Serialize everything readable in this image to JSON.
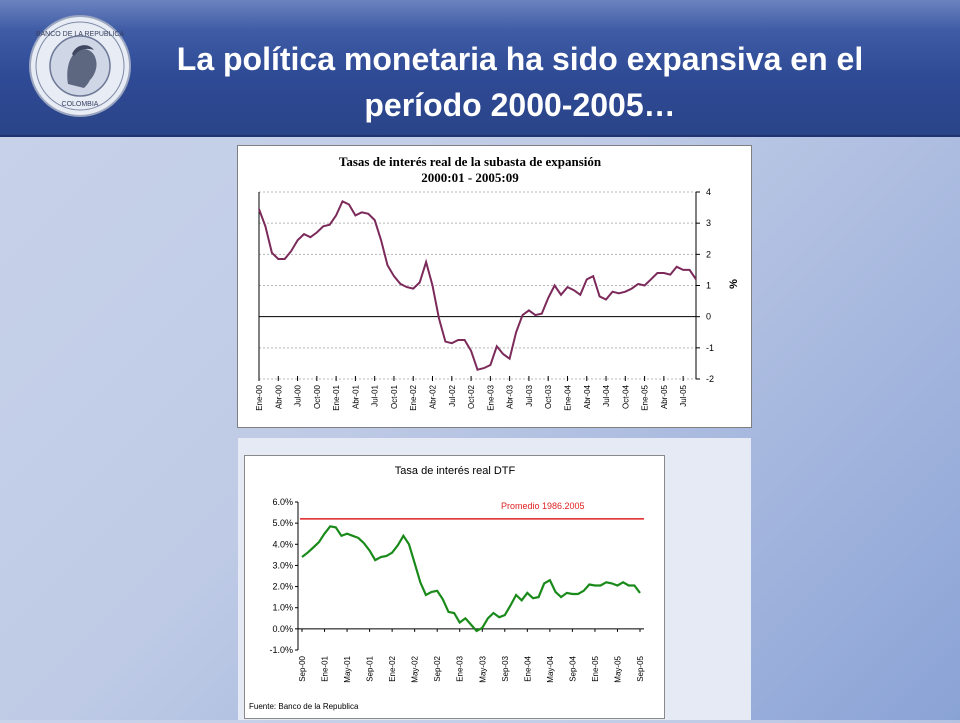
{
  "slide": {
    "title": "La política monetaria ha sido expansiva en el\nperíodo 2000-2005…",
    "logo": {
      "text_top": "BANCO DE LA REPUBLICA",
      "text_bottom": "COLOMBIA"
    }
  },
  "colors": {
    "header": "#2f4b96",
    "series1": "#7b2a5a",
    "series2": "#1a8a1a",
    "avg_line": "#e02020"
  },
  "chart_data": [
    {
      "type": "line",
      "title": "Tasas de interés real de la subasta de expansión",
      "subtitle": "2000:01 - 2005:09",
      "ylabel": "%",
      "ylim": [
        -2,
        4
      ],
      "yticks": [
        4,
        3,
        2,
        1,
        0,
        -1,
        -2
      ],
      "grid": true,
      "x_tick_labels": [
        "Ene-00",
        "Abr-00",
        "Jul-00",
        "Oct-00",
        "Ene-01",
        "Abr-01",
        "Jul-01",
        "Oct-01",
        "Ene-02",
        "Abr-02",
        "Jul-02",
        "Oct-02",
        "Ene-03",
        "Abr-03",
        "Jul-03",
        "Oct-03",
        "Ene-04",
        "Abr-04",
        "Jul-04",
        "Oct-04",
        "Ene-05",
        "Abr-05",
        "Jul-05"
      ],
      "series": [
        {
          "values": [
            3.45,
            2.9,
            2.05,
            1.85,
            1.85,
            2.1,
            2.45,
            2.65,
            2.55,
            2.7,
            2.9,
            2.95,
            3.25,
            3.7,
            3.6,
            3.25,
            3.35,
            3.3,
            3.1,
            2.45,
            1.65,
            1.3,
            1.05,
            0.95,
            0.9,
            1.1,
            1.75,
            1.0,
            -0.05,
            -0.8,
            -0.85,
            -0.75,
            -0.75,
            -1.1,
            -1.7,
            -1.65,
            -1.55,
            -0.95,
            -1.2,
            -1.35,
            -0.5,
            0.05,
            0.2,
            0.05,
            0.1,
            0.6,
            1.0,
            0.7,
            0.95,
            0.85,
            0.7,
            1.2,
            1.3,
            0.65,
            0.55,
            0.8,
            0.75,
            0.8,
            0.9,
            1.05,
            1.0,
            1.2,
            1.4,
            1.4,
            1.35,
            1.6,
            1.5,
            1.5,
            1.2
          ]
        }
      ]
    },
    {
      "type": "line",
      "title": "Tasa de interés real DTF",
      "ylim": [
        -1.0,
        6.0
      ],
      "yticks": [
        "6.0%",
        "5.0%",
        "4.0%",
        "3.0%",
        "2.0%",
        "1.0%",
        "0.0%",
        "-1.0%"
      ],
      "grid": false,
      "x_tick_labels": [
        "Sep-00",
        "Ene-01",
        "May-01",
        "Sep-01",
        "Ene-02",
        "May-02",
        "Sep-02",
        "Ene-03",
        "May-03",
        "Sep-03",
        "Ene-04",
        "May-04",
        "Sep-04",
        "Ene-05",
        "May-05",
        "Sep-05"
      ],
      "reference_line": {
        "label": "Promedio 1986.2005",
        "value": 5.2
      },
      "source": "Fuente: Banco de la Republica",
      "series": [
        {
          "values": [
            3.4,
            3.6,
            3.85,
            4.1,
            4.5,
            4.85,
            4.8,
            4.4,
            4.5,
            4.4,
            4.3,
            4.05,
            3.7,
            3.25,
            3.4,
            3.45,
            3.6,
            3.95,
            4.4,
            4.0,
            3.1,
            2.2,
            1.6,
            1.75,
            1.8,
            1.4,
            0.8,
            0.75,
            0.3,
            0.5,
            0.2,
            -0.1,
            0.05,
            0.5,
            0.75,
            0.55,
            0.65,
            1.1,
            1.6,
            1.35,
            1.7,
            1.45,
            1.5,
            2.15,
            2.3,
            1.75,
            1.5,
            1.7,
            1.65,
            1.65,
            1.8,
            2.1,
            2.05,
            2.05,
            2.2,
            2.15,
            2.05,
            2.2,
            2.05,
            2.05,
            1.7
          ]
        }
      ]
    }
  ]
}
